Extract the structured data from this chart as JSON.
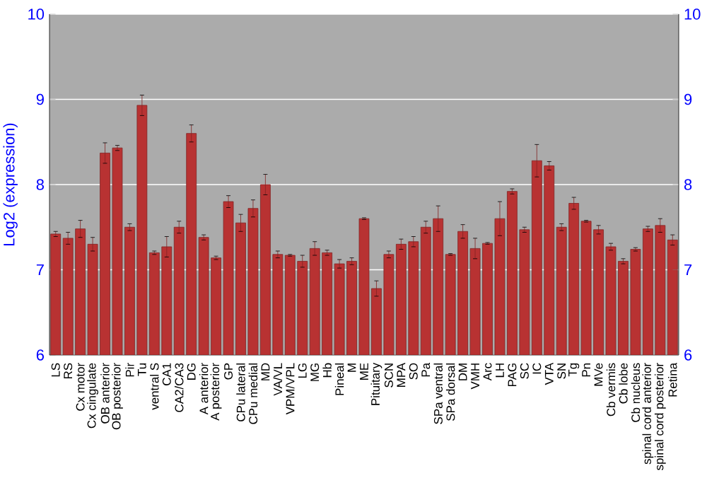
{
  "chart_data": {
    "type": "bar",
    "ylabel": "Log2 (expression)",
    "categories": [
      "LS",
      "RS",
      "Cx motor",
      "Cx cingulate",
      "OB anterior",
      "OB posterior",
      "Pir",
      "Tu",
      "ventral S",
      "CA1",
      "CA2/CA3",
      "DG",
      "A anterior",
      "A posterior",
      "GP",
      "CPu lateral",
      "CPu medial",
      "MD",
      "VA/VL",
      "VPM/VPL",
      "LG",
      "MG",
      "Hb",
      "Pineal",
      "M",
      "ME",
      "Pituitary",
      "SCN",
      "MPA",
      "SO",
      "Pa",
      "SPa ventral",
      "SPa dorsal",
      "DM",
      "VMH",
      "Arc",
      "LH",
      "PAG",
      "SC",
      "IC",
      "VTA",
      "SN",
      "Tg",
      "Pn",
      "MVe",
      "Cb vermis",
      "Cb lobe",
      "Cb nucleus",
      "spinal cord anterior",
      "spinal cord posterior",
      "Retina"
    ],
    "values": [
      7.42,
      7.37,
      7.48,
      7.3,
      8.37,
      8.43,
      7.5,
      8.93,
      7.2,
      7.27,
      7.5,
      8.6,
      7.38,
      7.14,
      7.8,
      7.55,
      7.72,
      8.0,
      7.18,
      7.17,
      7.1,
      7.25,
      7.2,
      7.07,
      7.1,
      7.6,
      6.78,
      7.18,
      7.3,
      7.33,
      7.5,
      7.6,
      7.18,
      7.45,
      7.25,
      7.31,
      7.6,
      7.92,
      7.47,
      8.28,
      8.22,
      7.5,
      7.78,
      7.57,
      7.47,
      7.27,
      7.1,
      7.24,
      7.48,
      7.52,
      7.35
    ],
    "errors": [
      0.03,
      0.07,
      0.1,
      0.08,
      0.12,
      0.03,
      0.04,
      0.12,
      0.02,
      0.12,
      0.07,
      0.1,
      0.03,
      0.02,
      0.07,
      0.1,
      0.1,
      0.12,
      0.04,
      0.01,
      0.07,
      0.08,
      0.03,
      0.05,
      0.04,
      0.01,
      0.09,
      0.04,
      0.06,
      0.06,
      0.07,
      0.15,
      0.01,
      0.08,
      0.12,
      0.01,
      0.2,
      0.03,
      0.03,
      0.19,
      0.05,
      0.04,
      0.07,
      0.01,
      0.05,
      0.04,
      0.03,
      0.02,
      0.03,
      0.08,
      0.06
    ],
    "color": "#b83232",
    "ylim": [
      6,
      10
    ],
    "yticks": [
      6,
      7,
      8,
      9,
      10
    ],
    "y2lim": [
      6,
      10
    ],
    "y2ticks": [
      6,
      7,
      8,
      9,
      10
    ],
    "grid": "y"
  }
}
